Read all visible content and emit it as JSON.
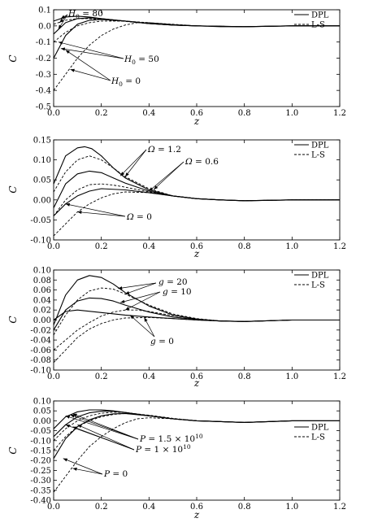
{
  "chart_data": [
    {
      "type": "line",
      "xlabel": "z",
      "ylabel": "C",
      "xlim": [
        0,
        1.2
      ],
      "ylim": [
        -0.5,
        0.1
      ],
      "xticks": [
        "0.0",
        "0.2",
        "0.4",
        "0.6",
        "0.8",
        "1.0",
        "1.2"
      ],
      "yticks": [
        "0.1",
        "0.0",
        "-0.1",
        "-0.2",
        "-0.3",
        "-0.4",
        "-0.5"
      ],
      "legend": {
        "position": "top-right",
        "entries": [
          "DPL",
          "L-S"
        ]
      },
      "series": [
        {
          "style": "solid",
          "x": [
            0,
            0.05,
            0.1,
            0.15,
            0.2,
            0.3,
            0.4,
            0.5,
            0.6,
            0.7,
            0.8,
            1.0,
            1.2
          ],
          "y": [
            0.03,
            0.055,
            0.06,
            0.055,
            0.045,
            0.03,
            0.015,
            0.005,
            0.0,
            -0.005,
            -0.005,
            0.0,
            0.0
          ]
        },
        {
          "style": "solid",
          "x": [
            0,
            0.05,
            0.1,
            0.15,
            0.2,
            0.3,
            0.4,
            0.5,
            0.6,
            0.8,
            1.0,
            1.2
          ],
          "y": [
            -0.05,
            0.02,
            0.045,
            0.05,
            0.045,
            0.03,
            0.015,
            0.005,
            0.0,
            -0.005,
            0.0,
            0.0
          ]
        },
        {
          "style": "solid",
          "x": [
            0,
            0.05,
            0.1,
            0.15,
            0.2,
            0.3,
            0.4,
            0.5,
            0.6,
            0.8,
            1.0,
            1.2
          ],
          "y": [
            -0.2,
            -0.06,
            0.01,
            0.035,
            0.04,
            0.03,
            0.015,
            0.005,
            0.0,
            -0.005,
            0.0,
            0.0
          ]
        },
        {
          "style": "dashed",
          "x": [
            0,
            0.05,
            0.1,
            0.15,
            0.2,
            0.3,
            0.4,
            0.5,
            0.6,
            0.8,
            1.0,
            1.2
          ],
          "y": [
            0.01,
            0.035,
            0.045,
            0.045,
            0.04,
            0.028,
            0.015,
            0.005,
            0.0,
            -0.005,
            0.0,
            0.0
          ]
        },
        {
          "style": "dashed",
          "x": [
            0,
            0.05,
            0.1,
            0.15,
            0.2,
            0.3,
            0.4,
            0.5,
            0.6,
            0.8,
            1.0,
            1.2
          ],
          "y": [
            -0.1,
            -0.04,
            0.0,
            0.02,
            0.03,
            0.03,
            0.02,
            0.008,
            0.0,
            -0.005,
            0.0,
            0.0
          ]
        },
        {
          "style": "dashed",
          "x": [
            0,
            0.05,
            0.1,
            0.15,
            0.2,
            0.25,
            0.3,
            0.35,
            0.4,
            0.5,
            0.6,
            0.8,
            1.0,
            1.2
          ],
          "y": [
            -0.4,
            -0.3,
            -0.2,
            -0.12,
            -0.06,
            -0.02,
            0.005,
            0.02,
            0.02,
            0.01,
            0.0,
            -0.005,
            0.0,
            0.0
          ]
        }
      ],
      "annotations": [
        {
          "base": "H",
          "sub": "0",
          "rest": " = 80"
        },
        {
          "base": "H",
          "sub": "0",
          "rest": " = 50"
        },
        {
          "base": "H",
          "sub": "0",
          "rest": " = 0"
        }
      ]
    },
    {
      "type": "line",
      "xlabel": "z",
      "ylabel": "C",
      "xlim": [
        0,
        1.2
      ],
      "ylim": [
        -0.1,
        0.15
      ],
      "xticks": [
        "0.0",
        "0.2",
        "0.4",
        "0.6",
        "0.8",
        "1.0",
        "1.2"
      ],
      "yticks": [
        "0.15",
        "0.10",
        "0.05",
        "0.00",
        "-0.05",
        "-0.10"
      ],
      "legend": {
        "position": "top-right",
        "entries": [
          "DPL",
          "L-S"
        ]
      },
      "series": [
        {
          "style": "solid",
          "x": [
            0,
            0.05,
            0.1,
            0.13,
            0.16,
            0.2,
            0.25,
            0.3,
            0.4,
            0.5,
            0.6,
            0.7,
            0.8,
            1.0,
            1.2
          ],
          "y": [
            0.04,
            0.11,
            0.13,
            0.133,
            0.128,
            0.11,
            0.08,
            0.055,
            0.025,
            0.01,
            0.003,
            0.0,
            -0.002,
            0.0,
            0.0
          ]
        },
        {
          "style": "dashed",
          "x": [
            0,
            0.05,
            0.1,
            0.15,
            0.2,
            0.25,
            0.3,
            0.4,
            0.5,
            0.6,
            0.7,
            0.8,
            1.0,
            1.2
          ],
          "y": [
            0.02,
            0.07,
            0.1,
            0.11,
            0.1,
            0.08,
            0.058,
            0.028,
            0.01,
            0.003,
            0.0,
            -0.002,
            0.0,
            0.0
          ]
        },
        {
          "style": "solid",
          "x": [
            0,
            0.05,
            0.1,
            0.15,
            0.2,
            0.25,
            0.3,
            0.4,
            0.5,
            0.6,
            0.7,
            0.8,
            1.0,
            1.2
          ],
          "y": [
            -0.02,
            0.04,
            0.065,
            0.072,
            0.068,
            0.055,
            0.042,
            0.022,
            0.01,
            0.003,
            0.0,
            -0.002,
            0.0,
            0.0
          ]
        },
        {
          "style": "dashed",
          "x": [
            0,
            0.05,
            0.1,
            0.15,
            0.2,
            0.25,
            0.3,
            0.4,
            0.5,
            0.6,
            0.7,
            0.8,
            1.0,
            1.2
          ],
          "y": [
            -0.04,
            0.0,
            0.025,
            0.038,
            0.04,
            0.037,
            0.032,
            0.02,
            0.01,
            0.003,
            0.0,
            -0.002,
            0.0,
            0.0
          ]
        },
        {
          "style": "solid",
          "x": [
            0,
            0.05,
            0.1,
            0.15,
            0.2,
            0.3,
            0.4,
            0.5,
            0.6,
            0.7,
            0.8,
            1.0,
            1.2
          ],
          "y": [
            -0.04,
            -0.01,
            0.01,
            0.022,
            0.028,
            0.025,
            0.018,
            0.01,
            0.003,
            0.0,
            -0.002,
            0.0,
            0.0
          ]
        },
        {
          "style": "dashed",
          "x": [
            0,
            0.05,
            0.1,
            0.15,
            0.2,
            0.25,
            0.3,
            0.4,
            0.5,
            0.6,
            0.7,
            0.8,
            1.0,
            1.2
          ],
          "y": [
            -0.09,
            -0.06,
            -0.03,
            -0.01,
            0.005,
            0.015,
            0.02,
            0.018,
            0.01,
            0.003,
            0.0,
            -0.002,
            0.0,
            0.0
          ]
        }
      ],
      "annotations": [
        {
          "base": "Ω",
          "sub": "",
          "rest": " = 1.2"
        },
        {
          "base": "Ω",
          "sub": "",
          "rest": " = 0.6"
        },
        {
          "base": "Ω",
          "sub": "",
          "rest": " = 0"
        }
      ]
    },
    {
      "type": "line",
      "xlabel": "z",
      "ylabel": "C",
      "xlim": [
        0,
        1.2
      ],
      "ylim": [
        -0.1,
        0.1
      ],
      "xticks": [
        "0.0",
        "0.2",
        "0.4",
        "0.6",
        "0.8",
        "1.0",
        "1.2"
      ],
      "yticks": [
        "0.10",
        "0.08",
        "0.06",
        "0.04",
        "0.02",
        "0.00",
        "-0.02",
        "-0.04",
        "-0.06",
        "-0.08",
        "-0.10"
      ],
      "legend": {
        "position": "top-right",
        "entries": [
          "DPL",
          "L-S"
        ]
      },
      "series": [
        {
          "style": "solid",
          "x": [
            0,
            0.05,
            0.1,
            0.15,
            0.2,
            0.25,
            0.3,
            0.4,
            0.5,
            0.6,
            0.7,
            0.8,
            1.0,
            1.2
          ],
          "y": [
            -0.01,
            0.05,
            0.08,
            0.089,
            0.085,
            0.072,
            0.055,
            0.028,
            0.01,
            0.002,
            -0.002,
            -0.003,
            0.0,
            0.0
          ]
        },
        {
          "style": "dashed",
          "x": [
            0,
            0.05,
            0.1,
            0.15,
            0.2,
            0.25,
            0.3,
            0.4,
            0.5,
            0.6,
            0.7,
            0.8,
            1.0,
            1.2
          ],
          "y": [
            -0.03,
            0.01,
            0.04,
            0.058,
            0.064,
            0.062,
            0.052,
            0.03,
            0.012,
            0.003,
            -0.002,
            -0.003,
            0.0,
            0.0
          ]
        },
        {
          "style": "solid",
          "x": [
            0,
            0.05,
            0.1,
            0.15,
            0.2,
            0.25,
            0.3,
            0.4,
            0.5,
            0.6,
            0.7,
            0.8,
            1.0,
            1.2
          ],
          "y": [
            -0.02,
            0.02,
            0.038,
            0.044,
            0.043,
            0.038,
            0.03,
            0.016,
            0.006,
            0.001,
            -0.002,
            -0.003,
            0.0,
            0.0
          ]
        },
        {
          "style": "dashed",
          "x": [
            0,
            0.05,
            0.1,
            0.15,
            0.2,
            0.25,
            0.3,
            0.35,
            0.4,
            0.5,
            0.6,
            0.7,
            0.8,
            1.0,
            1.2
          ],
          "y": [
            -0.06,
            -0.04,
            -0.02,
            -0.005,
            0.008,
            0.016,
            0.02,
            0.02,
            0.017,
            0.009,
            0.002,
            -0.002,
            -0.003,
            0.0,
            0.0
          ]
        },
        {
          "style": "solid",
          "x": [
            0,
            0.05,
            0.1,
            0.2,
            0.3,
            0.4,
            0.5,
            0.6,
            0.7,
            0.8,
            1.0,
            1.2
          ],
          "y": [
            0.0,
            0.017,
            0.02,
            0.015,
            0.01,
            0.006,
            0.003,
            0.0,
            -0.002,
            -0.003,
            0.0,
            0.0
          ]
        },
        {
          "style": "dashed",
          "x": [
            0,
            0.05,
            0.1,
            0.15,
            0.2,
            0.25,
            0.3,
            0.4,
            0.5,
            0.6,
            0.7,
            0.8,
            1.0,
            1.2
          ],
          "y": [
            -0.085,
            -0.06,
            -0.035,
            -0.018,
            -0.007,
            0.0,
            0.004,
            0.005,
            0.003,
            0.0,
            -0.002,
            -0.003,
            0.0,
            0.0
          ]
        }
      ],
      "annotations": [
        {
          "base": "g",
          "sub": "",
          "rest": " = 20"
        },
        {
          "base": "g",
          "sub": "",
          "rest": " = 10"
        },
        {
          "base": "g",
          "sub": "",
          "rest": " = 0"
        }
      ]
    },
    {
      "type": "line",
      "xlabel": "z",
      "ylabel": "C",
      "xlim": [
        0,
        1.2
      ],
      "ylim": [
        -0.4,
        0.1
      ],
      "xticks": [
        "0.0",
        "0.2",
        "0.4",
        "0.6",
        "0.8",
        "1.0",
        "1.2"
      ],
      "yticks": [
        "0.10",
        "0.05",
        "0.00",
        "-0.05",
        "-0.10",
        "-0.15",
        "-0.20",
        "-0.25",
        "-0.30",
        "-0.35",
        "-0.40"
      ],
      "legend": {
        "position": "middle-right",
        "entries": [
          "DPL",
          "L-S"
        ]
      },
      "series": [
        {
          "style": "solid",
          "x": [
            0,
            0.05,
            0.1,
            0.15,
            0.2,
            0.25,
            0.3,
            0.4,
            0.5,
            0.6,
            0.8,
            1.0,
            1.2
          ],
          "y": [
            -0.04,
            0.02,
            0.045,
            0.055,
            0.055,
            0.05,
            0.042,
            0.025,
            0.01,
            0.0,
            -0.008,
            0.0,
            0.0
          ]
        },
        {
          "style": "solid",
          "x": [
            0,
            0.05,
            0.1,
            0.15,
            0.2,
            0.25,
            0.3,
            0.4,
            0.5,
            0.6,
            0.8,
            1.0,
            1.2
          ],
          "y": [
            -0.08,
            -0.02,
            0.02,
            0.04,
            0.048,
            0.048,
            0.042,
            0.025,
            0.01,
            0.0,
            -0.008,
            0.0,
            0.0
          ]
        },
        {
          "style": "solid",
          "x": [
            0,
            0.05,
            0.1,
            0.15,
            0.2,
            0.25,
            0.3,
            0.4,
            0.5,
            0.6,
            0.8,
            1.0,
            1.2
          ],
          "y": [
            -0.19,
            -0.09,
            -0.03,
            0.005,
            0.025,
            0.035,
            0.037,
            0.025,
            0.01,
            0.0,
            -0.008,
            0.0,
            0.0
          ]
        },
        {
          "style": "dashed",
          "x": [
            0,
            0.05,
            0.1,
            0.15,
            0.2,
            0.25,
            0.3,
            0.4,
            0.5,
            0.6,
            0.8,
            1.0,
            1.2
          ],
          "y": [
            -0.1,
            -0.04,
            0.0,
            0.025,
            0.038,
            0.043,
            0.042,
            0.028,
            0.012,
            0.0,
            -0.008,
            0.0,
            0.0
          ]
        },
        {
          "style": "dashed",
          "x": [
            0,
            0.05,
            0.1,
            0.15,
            0.2,
            0.25,
            0.3,
            0.4,
            0.5,
            0.6,
            0.8,
            1.0,
            1.2
          ],
          "y": [
            -0.15,
            -0.08,
            -0.03,
            0.0,
            0.02,
            0.032,
            0.037,
            0.028,
            0.012,
            0.0,
            -0.008,
            0.0,
            0.0
          ]
        },
        {
          "style": "dashed",
          "x": [
            0,
            0.05,
            0.1,
            0.15,
            0.2,
            0.25,
            0.3,
            0.35,
            0.4,
            0.5,
            0.6,
            0.8,
            1.0,
            1.2
          ],
          "y": [
            -0.36,
            -0.28,
            -0.2,
            -0.13,
            -0.08,
            -0.04,
            -0.01,
            0.01,
            0.015,
            0.01,
            0.0,
            -0.008,
            0.0,
            0.0
          ]
        }
      ],
      "annotations": [
        {
          "base": "P",
          "sub": "",
          "rest": " = 1.5 × 10",
          "sup": "10"
        },
        {
          "base": "P",
          "sub": "",
          "rest": " = 1 × 10",
          "sup": "10"
        },
        {
          "base": "P",
          "sub": "",
          "rest": " = 0"
        }
      ]
    }
  ]
}
